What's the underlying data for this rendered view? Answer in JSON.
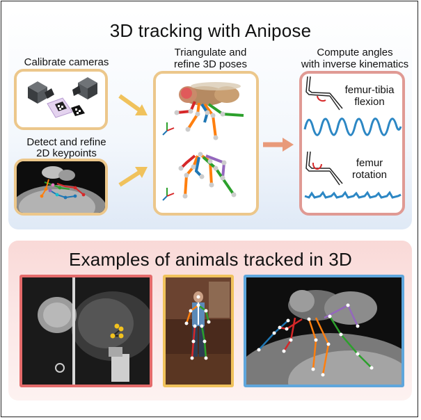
{
  "header": {
    "title": "3D tracking with Anipose"
  },
  "steps": {
    "calibrate": "Calibrate cameras",
    "detect_line1": "Detect and refine",
    "detect_line2": "2D keypoints",
    "triangulate_line1": "Triangulate and",
    "triangulate_line2": "refine 3D poses",
    "angles_line1": "Compute angles",
    "angles_line2": "with inverse kinematics"
  },
  "kinematics": {
    "femur_tibia_line1": "femur-tibia",
    "femur_tibia_line2": "flexion",
    "femur_rot_line1": "femur",
    "femur_rot_line2": "rotation"
  },
  "examples": {
    "title": "Examples of animals tracked in 3D"
  },
  "colors": {
    "top_panel_accent": "#dfe9f6",
    "bottom_panel_accent": "#f9d9d7",
    "box_gold": "#ecc78b",
    "box_red": "#e09a94",
    "arrow_gold": "#f0c25c",
    "arrow_salmon": "#e89a7a",
    "trace_blue": "#2c87c4",
    "photo_mouse": "#e46b6b",
    "photo_human": "#f0c25c",
    "photo_fly": "#5fa6dc"
  },
  "icons": [
    "camera-icon",
    "checkerboard-icon",
    "arrow-icon",
    "axes-icon",
    "fly-icon",
    "leg-icon"
  ]
}
